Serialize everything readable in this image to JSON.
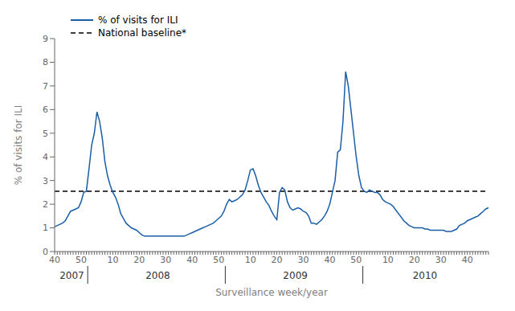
{
  "chart_data": {
    "type": "line",
    "xlabel": "Surveillance week/year",
    "ylabel": "% of visits for ILI",
    "categories": [
      "40",
      null,
      null,
      null,
      null,
      null,
      null,
      null,
      null,
      null,
      "50",
      null,
      null,
      null,
      null,
      null,
      null,
      null,
      null,
      null,
      null,
      null,
      "10",
      null,
      null,
      null,
      null,
      null,
      null,
      null,
      null,
      null,
      "20",
      null,
      null,
      null,
      null,
      null,
      null,
      null,
      null,
      null,
      "30",
      null,
      null,
      null,
      null,
      null,
      null,
      null,
      null,
      null,
      "40",
      null,
      null,
      null,
      null,
      null,
      null,
      null,
      null,
      null,
      "50",
      null,
      null,
      null,
      null,
      null,
      null,
      null,
      null,
      null,
      null,
      null,
      "10",
      null,
      null,
      null,
      null,
      null,
      null,
      null,
      null,
      null,
      "20",
      null,
      null,
      null,
      null,
      null,
      null,
      null,
      null,
      null,
      "30",
      null,
      null,
      null,
      null,
      null,
      null,
      null,
      null,
      null,
      "40",
      null,
      null,
      null,
      null,
      null,
      null,
      null,
      null,
      null,
      "50",
      null,
      null,
      null,
      null,
      null,
      null,
      null,
      null,
      null,
      null,
      null,
      "10",
      null,
      null,
      null,
      null,
      null,
      null,
      null,
      null,
      null,
      "20",
      null,
      null,
      null,
      null,
      null,
      null,
      null,
      null,
      null,
      "30",
      null,
      null,
      null,
      null,
      null,
      null,
      null,
      null,
      null,
      "40",
      null,
      null,
      null,
      null,
      null,
      null,
      null,
      null
    ],
    "series": [
      {
        "name": "% of visits for ILI",
        "color": "#1a5ea8",
        "values": [
          1.05,
          1.1,
          1.15,
          1.2,
          1.3,
          1.5,
          1.7,
          1.75,
          1.8,
          1.85,
          2.1,
          2.5,
          2.55,
          3.5,
          4.5,
          5.0,
          5.9,
          5.5,
          4.8,
          3.8,
          3.2,
          2.8,
          2.5,
          2.3,
          2.0,
          1.6,
          1.4,
          1.2,
          1.1,
          1.0,
          0.95,
          0.9,
          0.8,
          0.7,
          0.65,
          0.65,
          0.65,
          0.65,
          0.65,
          0.65,
          0.65,
          0.65,
          0.65,
          0.65,
          0.65,
          0.65,
          0.65,
          0.65,
          0.65,
          0.65,
          0.7,
          0.75,
          0.8,
          0.85,
          0.9,
          0.95,
          1.0,
          1.05,
          1.1,
          1.15,
          1.2,
          1.3,
          1.4,
          1.5,
          1.7,
          2.0,
          2.2,
          2.1,
          2.15,
          2.2,
          2.3,
          2.4,
          2.6,
          3.0,
          3.45,
          3.5,
          3.2,
          2.8,
          2.5,
          2.3,
          2.1,
          1.95,
          1.7,
          1.5,
          1.35,
          2.5,
          2.7,
          2.6,
          2.1,
          1.85,
          1.75,
          1.8,
          1.85,
          1.8,
          1.7,
          1.65,
          1.5,
          1.2,
          1.2,
          1.15,
          1.25,
          1.35,
          1.5,
          1.7,
          2.0,
          2.5,
          3.0,
          4.2,
          4.3,
          5.5,
          7.6,
          7.0,
          6.0,
          5.0,
          4.0,
          3.2,
          2.7,
          2.55,
          2.5,
          2.6,
          2.55,
          2.5,
          2.5,
          2.4,
          2.2,
          2.1,
          2.05,
          2.0,
          1.9,
          1.75,
          1.6,
          1.45,
          1.3,
          1.2,
          1.1,
          1.05,
          1.0,
          1.0,
          1.0,
          1.0,
          0.95,
          0.95,
          0.9,
          0.9,
          0.9,
          0.9,
          0.9,
          0.9,
          0.85,
          0.85,
          0.85,
          0.9,
          0.95,
          1.1,
          1.15,
          1.2,
          1.3,
          1.35,
          1.4,
          1.45,
          1.5,
          1.6,
          1.7,
          1.8,
          1.85
        ]
      }
    ],
    "reference_line": {
      "name": "National baseline*",
      "value": 2.55,
      "color": "#000000",
      "line_style": "dashed"
    },
    "annotations": [
      {
        "text": "2007",
        "start": 0,
        "end": 13
      },
      {
        "text": "2008",
        "start": 13,
        "end": 65
      },
      {
        "text": "2009",
        "start": 65,
        "end": 117
      },
      {
        "text": "2010",
        "start": 117,
        "end": 163
      }
    ],
    "ylim": [
      0,
      9
    ],
    "yticks": [
      0,
      1,
      2,
      3,
      4,
      5,
      6,
      7,
      8,
      9
    ],
    "grid": false,
    "legend": "upper left"
  }
}
